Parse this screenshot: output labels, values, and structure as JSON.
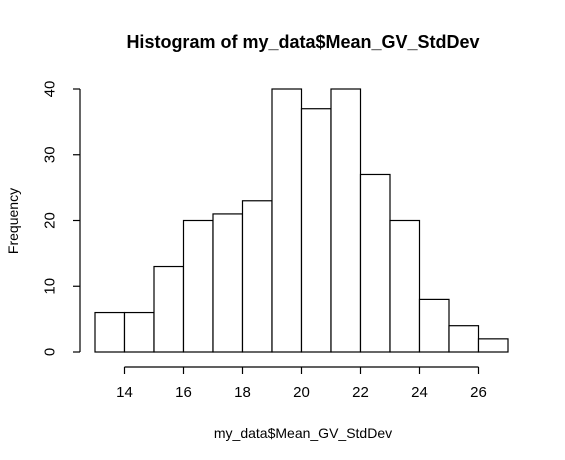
{
  "chart_data": {
    "type": "bar",
    "title": "Histogram of my_data$Mean_GV_StdDev",
    "xlabel": "my_data$Mean_GV_StdDev",
    "ylabel": "Frequency",
    "bin_edges": [
      13,
      14,
      15,
      16,
      17,
      18,
      19,
      20,
      21,
      22,
      23,
      24,
      25,
      26,
      27
    ],
    "values": [
      6,
      6,
      13,
      20,
      21,
      23,
      40,
      37,
      40,
      27,
      20,
      8,
      4,
      2
    ],
    "xlim": [
      13,
      27
    ],
    "ylim": [
      0,
      40
    ],
    "x_ticks": [
      14,
      16,
      18,
      20,
      22,
      24,
      26
    ],
    "y_ticks": [
      0,
      10,
      20,
      30,
      40
    ],
    "grid": false,
    "legend": "none",
    "bar_fill": "#ffffff",
    "bar_stroke": "#000000"
  }
}
